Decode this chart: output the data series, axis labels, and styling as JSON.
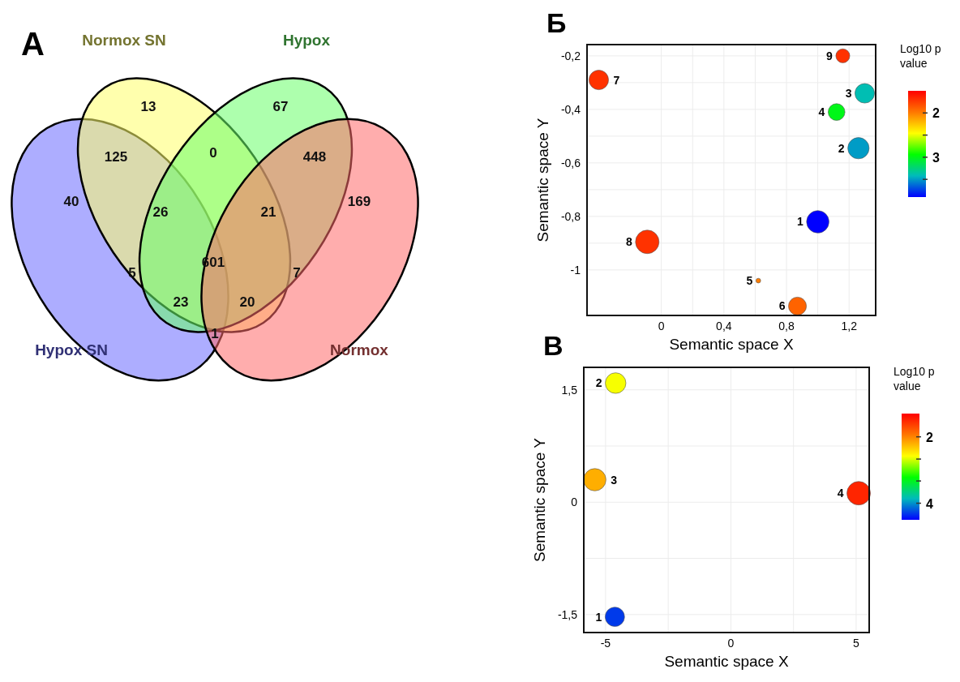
{
  "chart_data": [
    {
      "type": "other",
      "title": "A",
      "categories": [
        "Hypox SN",
        "Normox SN",
        "Hypox",
        "Normox"
      ],
      "colors": [
        "#6a6aff",
        "#ffff6a",
        "#6aff6a",
        "#ff6a6a"
      ],
      "annotations": [
        "40",
        "13",
        "67",
        "169",
        "125",
        "0",
        "448",
        "26",
        "21",
        "601",
        "5",
        "7",
        "23",
        "20",
        "1"
      ]
    },
    {
      "type": "bubble",
      "title": "Б",
      "xlabel": "Semantic space X",
      "ylabel": "Semantic space Y",
      "clabel": "Log10 p value",
      "grid": true,
      "xlim": [
        -0.475,
        1.37
      ],
      "xticks": [
        0,
        {
          "value": 0.4,
          "label": "0,4"
        },
        {
          "value": 0.8,
          "label": "0,8"
        },
        {
          "value": 1.2,
          "label": "1,2"
        }
      ],
      "ylim": [
        -1.17,
        -0.158
      ],
      "yticks": [
        {
          "value": -1,
          "label": "-1"
        },
        {
          "value": -0.8,
          "label": "-0,8"
        },
        {
          "value": -0.6,
          "label": "-0,6"
        },
        {
          "value": -0.4,
          "label": "-0,4"
        },
        {
          "value": -0.2,
          "label": "-0,2"
        }
      ],
      "clim": [
        1.5,
        3.9
      ],
      "cticks": [
        2,
        {
          "value": 2.5,
          "label": null
        },
        3,
        {
          "value": 3.5,
          "label": null
        }
      ],
      "x": [
        1.0,
        1.26,
        1.3,
        1.12,
        0.62,
        0.87,
        -0.4,
        -0.09,
        1.16
      ],
      "values": [
        -0.82,
        -0.545,
        -0.34,
        -0.41,
        -1.04,
        -1.135,
        -0.29,
        -0.895,
        -0.2
      ],
      "sizes": [
        0.91,
        0.82,
        0.69,
        0.51,
        0.04,
        0.58,
        0.69,
        1,
        0.35
      ],
      "cvalues": [
        3.9,
        3.5,
        3.4,
        3.0,
        2.0,
        1.9,
        1.7,
        1.7,
        1.7
      ],
      "annotations": [
        {
          "text": "1",
          "x": 1.0,
          "y": -0.82
        },
        {
          "text": "2",
          "x": 1.26,
          "y": -0.545
        },
        {
          "text": "3",
          "x": 1.3,
          "y": -0.34
        },
        {
          "text": "4",
          "x": 1.12,
          "y": -0.41
        },
        {
          "text": "5",
          "x": 0.62,
          "y": -1.04
        },
        {
          "text": "6",
          "x": 0.87,
          "y": -1.135
        },
        {
          "text": "7",
          "x": -0.4,
          "y": -0.29
        },
        {
          "text": "8",
          "x": -0.09,
          "y": -0.895
        },
        {
          "text": "9",
          "x": 1.16,
          "y": -0.2
        }
      ]
    },
    {
      "type": "bubble",
      "title": "В",
      "xlabel": "Semantic space X",
      "ylabel": "Semantic space Y",
      "clabel": "Log10 p value",
      "grid": true,
      "xlim": [
        -5.87,
        5.52
      ],
      "xticks": [
        -5,
        0,
        5
      ],
      "ylim": [
        -1.74,
        1.8
      ],
      "yticks": [
        {
          "value": -1.5,
          "label": "-1,5"
        },
        0,
        {
          "value": 1.5,
          "label": "1,5"
        }
      ],
      "clim": [
        1.3,
        4.5
      ],
      "cticks": [
        2,
        {
          "value": 2.67,
          "label": null
        },
        {
          "value": 3.33,
          "label": null
        },
        4
      ],
      "x": [
        -4.63,
        -4.6,
        -5.43,
        5.1
      ],
      "values": [
        -1.53,
        1.59,
        0.3,
        0.12
      ],
      "sizes": [
        0.68,
        0.77,
        0.9,
        1
      ],
      "cvalues": [
        4.3,
        2.6,
        2.2,
        1.5
      ],
      "annotations": [
        {
          "text": "1",
          "x": -4.63,
          "y": -1.53
        },
        {
          "text": "2",
          "x": -4.6,
          "y": 1.59
        },
        {
          "text": "3",
          "x": -5.43,
          "y": 0.3
        },
        {
          "text": "4",
          "x": 5.1,
          "y": 0.12
        }
      ]
    }
  ]
}
